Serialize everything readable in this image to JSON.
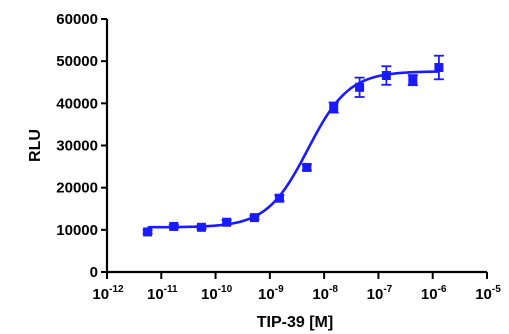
{
  "chart_data": {
    "type": "scatter",
    "xlabel": "TIP-39 [M]",
    "ylabel": "RLU",
    "x_scale": "log",
    "xlim": [
      1e-12,
      1e-05
    ],
    "ylim": [
      0,
      60000
    ],
    "x_ticks": [
      {
        "base": "10",
        "exp": "-12"
      },
      {
        "base": "10",
        "exp": "-11"
      },
      {
        "base": "10",
        "exp": "-10"
      },
      {
        "base": "10",
        "exp": "-9"
      },
      {
        "base": "10",
        "exp": "-8"
      },
      {
        "base": "10",
        "exp": "-7"
      },
      {
        "base": "10",
        "exp": "-6"
      },
      {
        "base": "10",
        "exp": "-5"
      }
    ],
    "y_ticks": [
      "0",
      "10000",
      "20000",
      "30000",
      "40000",
      "50000",
      "60000"
    ],
    "color": "#1a1aff",
    "grid": false,
    "series": [
      {
        "x": [
          5.6e-12,
          1.7e-11,
          5.5e-11,
          1.6e-10,
          5.2e-10,
          1.5e-09,
          4.8e-09,
          1.5e-08,
          4.5e-08,
          1.4e-07,
          4.3e-07,
          1.3e-06
        ],
        "y": [
          9500,
          10800,
          10600,
          11800,
          12900,
          17500,
          24800,
          39000,
          43800,
          46600,
          45500,
          48500
        ],
        "err": [
          400,
          400,
          400,
          500,
          400,
          700,
          700,
          1200,
          2300,
          2200,
          1200,
          2800
        ]
      }
    ],
    "fit": {
      "bottom": 10600,
      "top": 47600,
      "log_ec50": -8.3,
      "hill": 1.15
    }
  }
}
